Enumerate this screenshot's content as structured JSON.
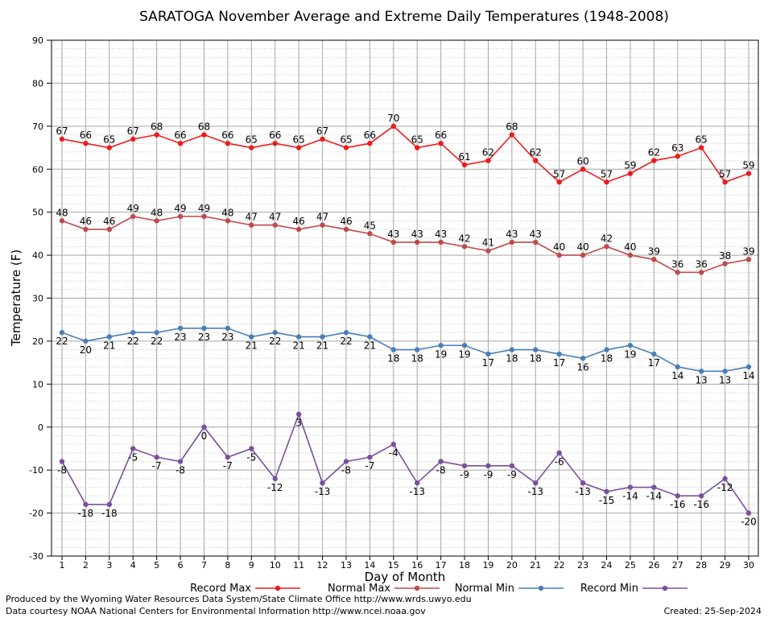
{
  "chart_data": {
    "type": "line",
    "title": "SARATOGA November Average and Extreme Daily Temperatures (1948-2008)",
    "xlabel": "Day of Month",
    "ylabel": "Temperature (F)",
    "x": [
      1,
      2,
      3,
      4,
      5,
      6,
      7,
      8,
      9,
      10,
      11,
      12,
      13,
      14,
      15,
      16,
      17,
      18,
      19,
      20,
      21,
      22,
      23,
      24,
      25,
      26,
      27,
      28,
      29,
      30
    ],
    "xlim": [
      1,
      30
    ],
    "ylim": [
      -30,
      90
    ],
    "yticks": [
      -30,
      -20,
      -10,
      0,
      10,
      20,
      30,
      40,
      50,
      60,
      70,
      80,
      90
    ],
    "grid": true,
    "legend_position": "bottom",
    "series": [
      {
        "name": "Record Max",
        "color": "#ee1b1b",
        "label_pos": "above",
        "values": [
          67,
          66,
          65,
          67,
          68,
          66,
          68,
          66,
          65,
          66,
          65,
          67,
          65,
          66,
          70,
          65,
          66,
          61,
          62,
          68,
          62,
          57,
          60,
          57,
          59,
          62,
          63,
          65,
          57,
          59
        ]
      },
      {
        "name": "Normal Max",
        "color": "#bf4a4a",
        "label_pos": "above",
        "values": [
          48,
          46,
          46,
          49,
          48,
          49,
          49,
          48,
          47,
          47,
          46,
          47,
          46,
          45,
          43,
          43,
          43,
          42,
          41,
          43,
          43,
          40,
          40,
          42,
          40,
          39,
          36,
          36,
          38,
          39
        ]
      },
      {
        "name": "Normal Min",
        "color": "#4a7eb8",
        "label_pos": "below",
        "values": [
          22,
          20,
          21,
          22,
          22,
          23,
          23,
          23,
          21,
          22,
          21,
          21,
          22,
          21,
          18,
          18,
          19,
          19,
          17,
          18,
          18,
          17,
          16,
          18,
          19,
          17,
          14,
          13,
          13,
          14
        ]
      },
      {
        "name": "Record Min",
        "color": "#7a4f9e",
        "label_pos": "below",
        "values": [
          -8,
          -18,
          -18,
          -5,
          -7,
          -8,
          0,
          -7,
          -5,
          -12,
          3,
          -13,
          -8,
          -7,
          -4,
          -13,
          -8,
          -9,
          -9,
          -9,
          -13,
          -6,
          -13,
          -15,
          -14,
          -14,
          -16,
          -16,
          -12,
          -20
        ]
      }
    ]
  },
  "footer": {
    "produced_by": "Produced by the Wyoming Water Resources Data System/State Climate Office http://www.wrds.uwyo.edu",
    "courtesy": "Data courtesy NOAA National Centers for Environmental Information http://www.ncei.noaa.gov",
    "created": "Created:  25-Sep-2024"
  }
}
